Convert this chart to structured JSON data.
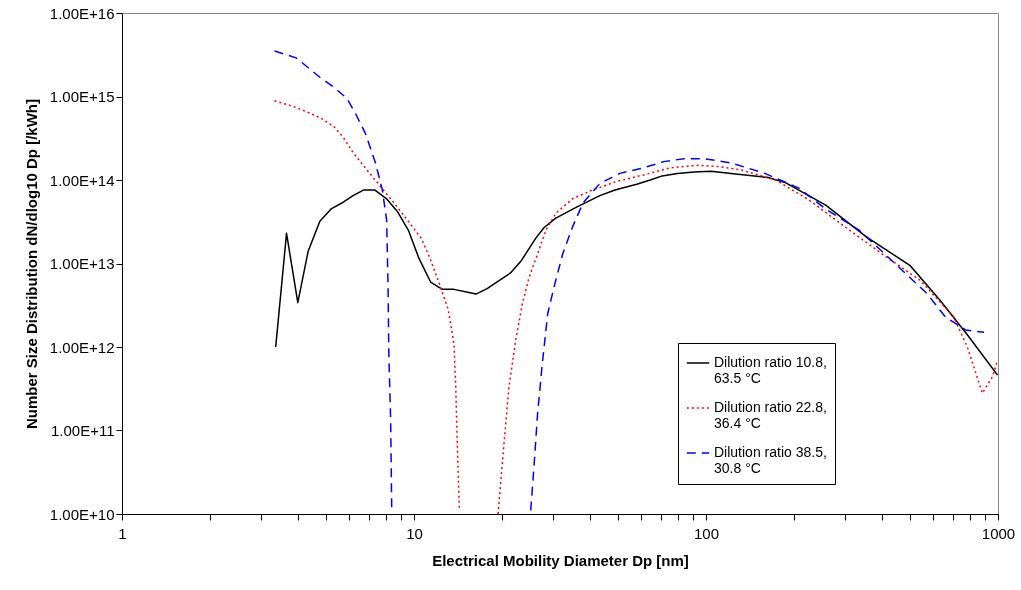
{
  "chart_data": {
    "type": "line",
    "xlabel": "Electrical Mobility Diameter Dp [nm]",
    "ylabel": "Number Size Distribution dN/dlog10 Dp [/kWh]",
    "log": "xy",
    "grid": false,
    "legend": "bottom right",
    "marker": "none",
    "xlim": [
      1,
      1000
    ],
    "xticks": [
      1,
      {
        "value": 2,
        "label": null
      },
      {
        "value": 3,
        "label": null
      },
      {
        "value": 4,
        "label": null
      },
      {
        "value": 5,
        "label": null
      },
      {
        "value": 6,
        "label": null
      },
      {
        "value": 7,
        "label": null
      },
      {
        "value": 8,
        "label": null
      },
      {
        "value": 9,
        "label": null
      },
      10,
      {
        "value": 20,
        "label": null
      },
      {
        "value": 30,
        "label": null
      },
      {
        "value": 40,
        "label": null
      },
      {
        "value": 50,
        "label": null
      },
      {
        "value": 60,
        "label": null
      },
      {
        "value": 70,
        "label": null
      },
      {
        "value": 80,
        "label": null
      },
      {
        "value": 90,
        "label": null
      },
      100,
      {
        "value": 200,
        "label": null
      },
      {
        "value": 300,
        "label": null
      },
      {
        "value": 400,
        "label": null
      },
      {
        "value": 500,
        "label": null
      },
      {
        "value": 600,
        "label": null
      },
      {
        "value": 700,
        "label": null
      },
      {
        "value": 800,
        "label": null
      },
      {
        "value": 900,
        "label": null
      },
      1000
    ],
    "ylim": [
      10000000000.0,
      1e+16
    ],
    "yticks": [
      {
        "value": 10000000000.0,
        "label": "1.00E+10"
      },
      {
        "value": 100000000000.0,
        "label": "1.00E+11"
      },
      {
        "value": 1000000000000.0,
        "label": "1.00E+12"
      },
      {
        "value": 10000000000000.0,
        "label": "1.00E+13"
      },
      {
        "value": 100000000000000.0,
        "label": "1.00E+14"
      },
      {
        "value": 1000000000000000.0,
        "label": "1.00E+15"
      },
      {
        "value": 1e+16,
        "label": "1.00E+16"
      }
    ],
    "series": [
      {
        "name": "Dilution ratio 10.8, 63.5 °C",
        "color": "#000000",
        "line_style": "solid",
        "x": [
          3.36,
          3.66,
          4.0,
          4.34,
          4.76,
          5.2,
          5.66,
          6.18,
          6.74,
          7.33,
          8.04,
          8.77,
          9.57,
          10.4,
          11.4,
          12.5,
          13.7,
          15.0,
          16.3,
          17.8,
          19.5,
          21.4,
          23.3,
          26.1,
          27.9,
          30.6,
          35.9,
          43.3,
          48.8,
          57.9,
          64.4,
          70.8,
          79.8,
          91,
          104,
          128.6,
          163,
          187,
          257,
          353,
          499,
          634,
          785,
          996
        ],
        "values": [
          1000000000000.0,
          23000000000000.0,
          3400000000000.0,
          14000000000000.0,
          32000000000000.0,
          45000000000000.0,
          53000000000000.0,
          65000000000000.0,
          76000000000000.0,
          76000000000000.0,
          60000000000000.0,
          42000000000000.0,
          25000000000000.0,
          11500000000000.0,
          6000000000000.0,
          4900000000000.0,
          4900000000000.0,
          4600000000000.0,
          4300000000000.0,
          5000000000000.0,
          6200000000000.0,
          7700000000000.0,
          10800000000000.0,
          20000000000000.0,
          27000000000000.0,
          35000000000000.0,
          47000000000000.0,
          65000000000000.0,
          76000000000000.0,
          89000000000000.0,
          100000000000000.0,
          112000000000000.0,
          120000000000000.0,
          125000000000000.0,
          127000000000000.0,
          117000000000000.0,
          107000000000000.0,
          93000000000000.0,
          50000000000000.0,
          21000000000000.0,
          9500000000000.0,
          3600000000000.0,
          1400000000000.0,
          460000000000.0
        ]
      },
      {
        "name": "Dilution ratio 22.8, 36.4 °C",
        "color": "#ff0000",
        "line_style": "dotted",
        "x": [
          3.33,
          3.95,
          4.76,
          5.3,
          5.74,
          6.2,
          6.9,
          7.69,
          8.55,
          9.5,
          10.6,
          11.4,
          12.2,
          13.1,
          13.7,
          13.9,
          14.1,
          14.3,
          null,
          19.4,
          20.3,
          21.1,
          22.2,
          23.5,
          24.8,
          26.5,
          28.3,
          30.6,
          35.0,
          41.0,
          49.4,
          61.1,
          75.5,
          93.5,
          110,
          132,
          173,
          225,
          293,
          414,
          541,
          705,
          785,
          884,
          957,
          996
        ],
        "values": [
          890000000000000.0,
          740000000000000.0,
          560000000000000.0,
          440000000000000.0,
          320000000000000.0,
          210000000000000.0,
          132000000000000.0,
          83000000000000.0,
          53000000000000.0,
          33000000000000.0,
          20000000000000.0,
          11000000000000.0,
          5800000000000.0,
          2800000000000.0,
          1100000000000.0,
          330000000000.0,
          53000000000.0,
          11000000000.0,
          null,
          10000000000.0,
          65000000000.0,
          310000000000.0,
          1100000000000.0,
          3300000000000.0,
          6900000000000.0,
          13000000000000.0,
          25000000000000.0,
          40000000000000.0,
          60000000000000.0,
          76000000000000.0,
          96000000000000.0,
          115000000000000.0,
          140000000000000.0,
          150000000000000.0,
          145000000000000.0,
          132000000000000.0,
          100000000000000.0,
          58000000000000.0,
          29000000000000.0,
          12000000000000.0,
          6300000000000.0,
          2300000000000.0,
          1000000000000.0,
          280000000000.0,
          440000000000.0,
          690000000000.0
        ]
      },
      {
        "name": "Dilution ratio 38.5, 30.8 °C",
        "color": "#0000ff",
        "line_style": "dashed",
        "x": [
          3.33,
          3.95,
          4.76,
          5.3,
          5.89,
          6.3,
          6.82,
          7.38,
          7.79,
          8.06,
          8.15,
          8.2,
          8.32,
          8.39,
          null,
          25.1,
          25.8,
          26.5,
          27.5,
          28.7,
          30.2,
          32.3,
          35.0,
          37.9,
          43.3,
          50.7,
          61.1,
          71.7,
          84.1,
          98.6,
          122,
          159,
          208,
          257,
          335,
          437,
          570,
          660,
          774,
          896
        ],
        "values": [
          3500000000000000.0,
          2900000000000000.0,
          1700000000000000.0,
          1300000000000000.0,
          950000000000000.0,
          630000000000000.0,
          360000000000000.0,
          160000000000000.0,
          76000000000000.0,
          33000000000000.0,
          5300000000000.0,
          830000000000.0,
          130000000000.0,
          11000000000.0,
          null,
          11000000000.0,
          40000000000.0,
          160000000000.0,
          630000000000.0,
          2500000000000.0,
          5300000000000.0,
          13000000000000.0,
          28000000000000.0,
          53000000000000.0,
          91000000000000.0,
          120000000000000.0,
          140000000000000.0,
          166000000000000.0,
          180000000000000.0,
          180000000000000.0,
          160000000000000.0,
          120000000000000.0,
          80000000000000.0,
          45000000000000.0,
          25000000000000.0,
          10500000000000.0,
          4400000000000.0,
          2300000000000.0,
          1600000000000.0,
          1500000000000.0
        ]
      }
    ]
  }
}
